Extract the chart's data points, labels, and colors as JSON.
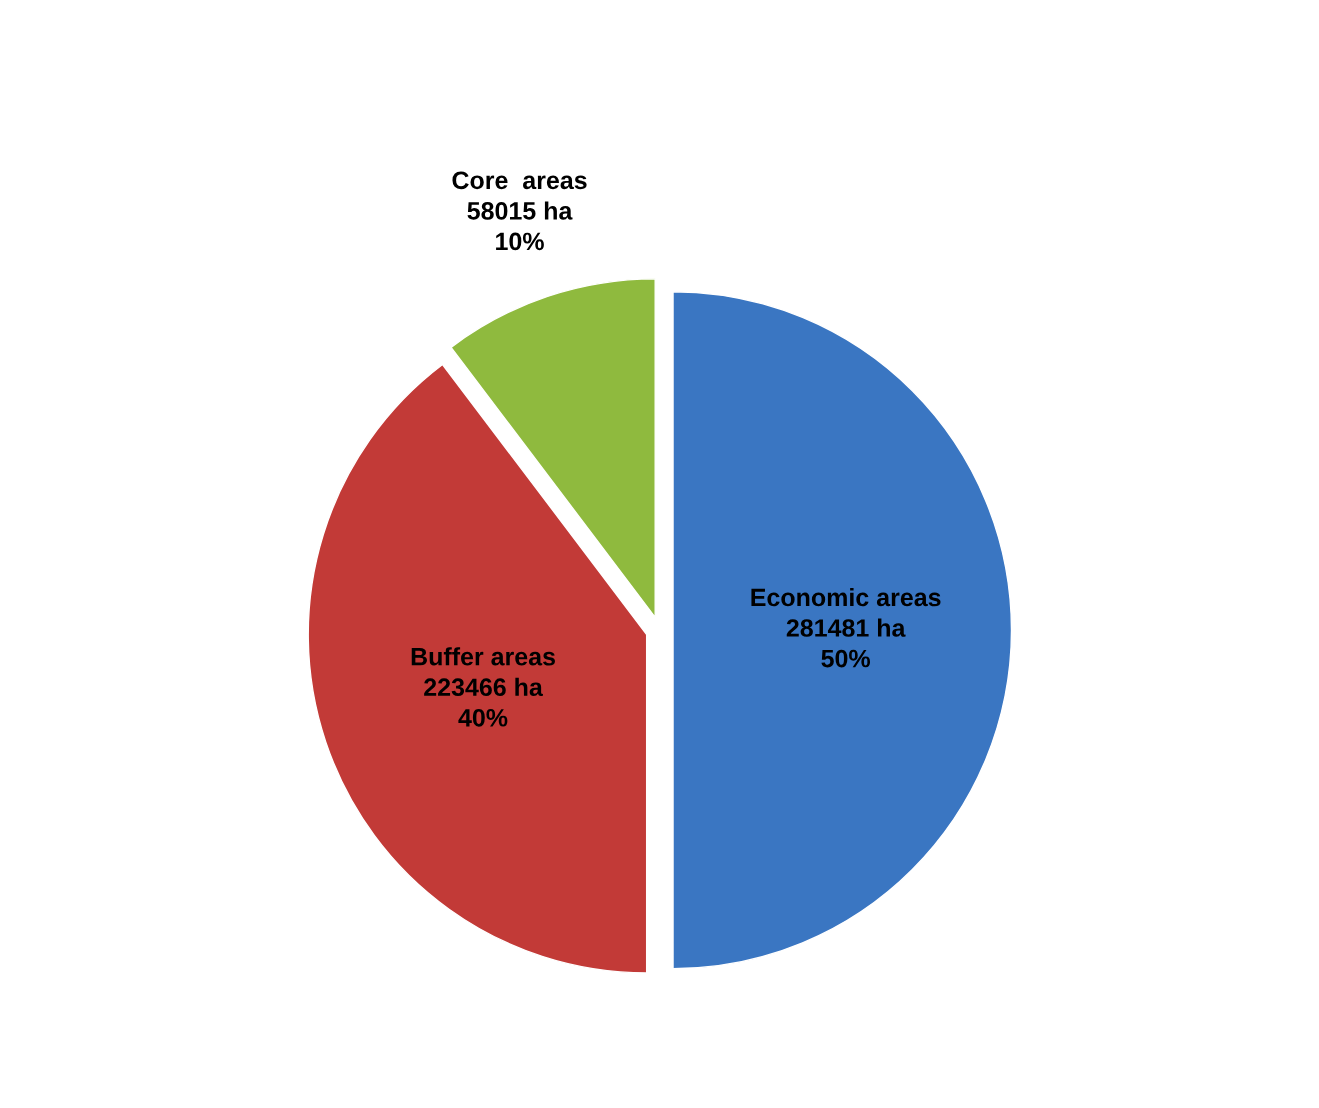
{
  "chart_data": {
    "type": "pie",
    "categories": [
      "Economic areas",
      "Buffer areas",
      "Core  areas"
    ],
    "values": [
      281481,
      223466,
      58015
    ],
    "value_labels": [
      "281481 ha\n50%",
      "223466 ha\n40%",
      "58015 ha\n10%"
    ],
    "colors": [
      "#3a76c2",
      "#c23a37",
      "#8fba3e"
    ]
  }
}
